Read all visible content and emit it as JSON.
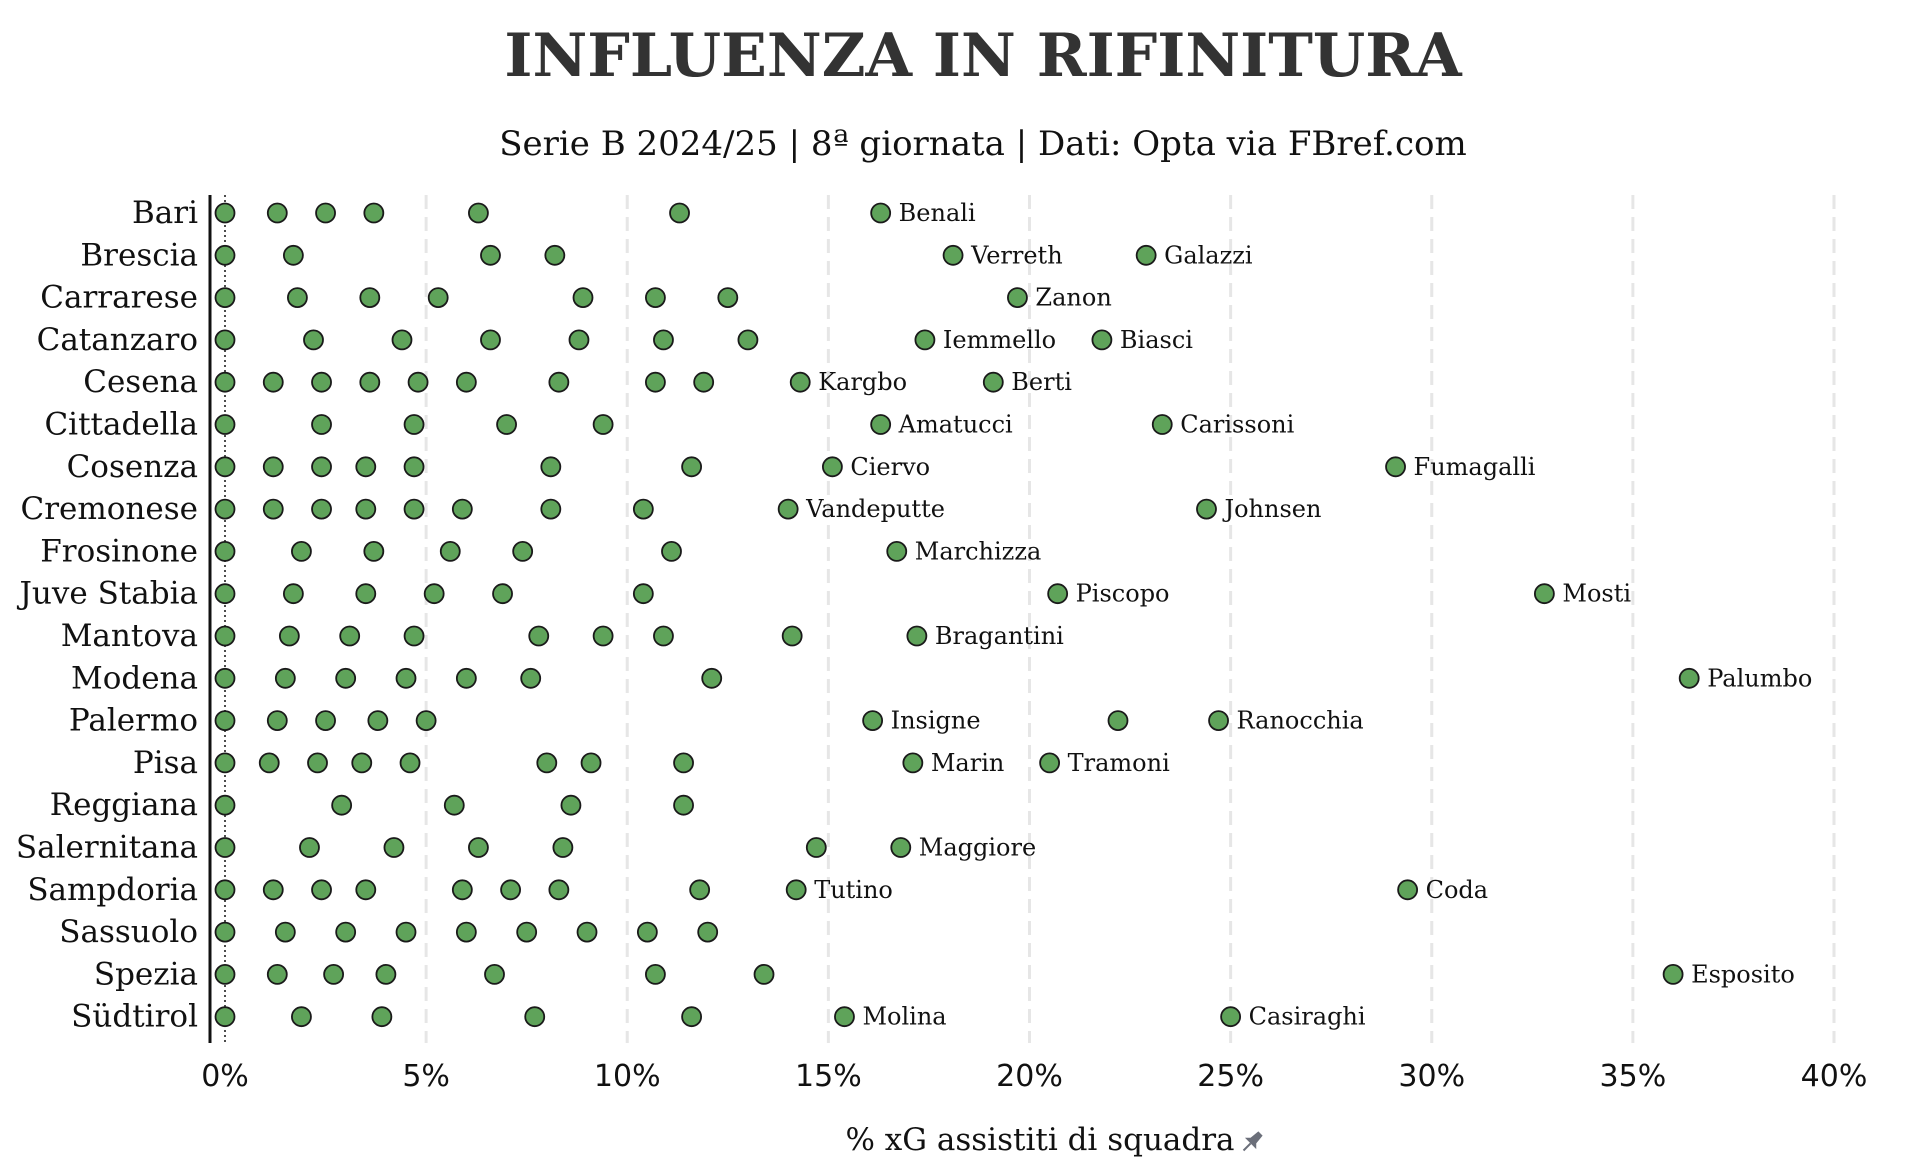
{
  "chart_data": {
    "type": "scatter",
    "title": "INFLUENZA IN RIFINITURA",
    "subtitle": "Serie B 2024/25 | 8ª giornata | Dati: Opta via FBref.com",
    "xlabel": "% xG assistiti di squadra",
    "xlim": [
      0,
      40
    ],
    "x_ticks": [
      0,
      5,
      10,
      15,
      20,
      25,
      30,
      35,
      40
    ],
    "x_tick_labels": [
      "0%",
      "5%",
      "10%",
      "15%",
      "20%",
      "25%",
      "30%",
      "35%",
      "40%"
    ],
    "grid": "vertical dashed",
    "marker_color": "#5fa35a",
    "marker_edge": "#1a1a1a",
    "categories": [
      "Bari",
      "Brescia",
      "Carrarese",
      "Catanzaro",
      "Cesena",
      "Cittadella",
      "Cosenza",
      "Cremonese",
      "Frosinone",
      "Juve Stabia",
      "Mantova",
      "Modena",
      "Palermo",
      "Pisa",
      "Reggiana",
      "Salernitana",
      "Sampdoria",
      "Sassuolo",
      "Spezia",
      "Südtirol"
    ],
    "teams": [
      {
        "team": "Bari",
        "values": [
          0,
          1.3,
          2.5,
          3.7,
          6.3,
          11.3,
          16.3
        ],
        "labels": [
          {
            "x": 16.3,
            "name": "Benali"
          }
        ]
      },
      {
        "team": "Brescia",
        "values": [
          0,
          1.7,
          6.6,
          8.2,
          18.1,
          22.9
        ],
        "labels": [
          {
            "x": 18.1,
            "name": "Verreth"
          },
          {
            "x": 22.9,
            "name": "Galazzi"
          }
        ]
      },
      {
        "team": "Carrarese",
        "values": [
          0,
          1.8,
          3.6,
          5.3,
          8.9,
          10.7,
          12.5,
          19.7
        ],
        "labels": [
          {
            "x": 19.7,
            "name": "Zanon"
          }
        ]
      },
      {
        "team": "Catanzaro",
        "values": [
          0,
          2.2,
          4.4,
          6.6,
          8.8,
          10.9,
          13.0,
          17.4,
          21.8
        ],
        "labels": [
          {
            "x": 17.4,
            "name": "Iemmello"
          },
          {
            "x": 21.8,
            "name": "Biasci"
          }
        ]
      },
      {
        "team": "Cesena",
        "values": [
          0,
          1.2,
          2.4,
          3.6,
          4.8,
          6.0,
          8.3,
          10.7,
          11.9,
          14.3,
          19.1
        ],
        "labels": [
          {
            "x": 14.3,
            "name": "Kargbo"
          },
          {
            "x": 19.1,
            "name": "Berti"
          }
        ]
      },
      {
        "team": "Cittadella",
        "values": [
          0,
          2.4,
          4.7,
          7.0,
          9.4,
          16.3,
          23.3
        ],
        "labels": [
          {
            "x": 16.3,
            "name": "Amatucci"
          },
          {
            "x": 23.3,
            "name": "Carissoni"
          }
        ]
      },
      {
        "team": "Cosenza",
        "values": [
          0,
          1.2,
          2.4,
          3.5,
          4.7,
          8.1,
          11.6,
          15.1,
          29.1
        ],
        "labels": [
          {
            "x": 15.1,
            "name": "Ciervo"
          },
          {
            "x": 29.1,
            "name": "Fumagalli"
          }
        ]
      },
      {
        "team": "Cremonese",
        "values": [
          0,
          1.2,
          2.4,
          3.5,
          4.7,
          5.9,
          8.1,
          10.4,
          14.0,
          24.4
        ],
        "labels": [
          {
            "x": 14.0,
            "name": "Vandeputte"
          },
          {
            "x": 24.4,
            "name": "Johnsen"
          }
        ]
      },
      {
        "team": "Frosinone",
        "values": [
          0,
          1.9,
          3.7,
          5.6,
          7.4,
          11.1,
          16.7
        ],
        "labels": [
          {
            "x": 16.7,
            "name": "Marchizza"
          }
        ]
      },
      {
        "team": "Juve Stabia",
        "values": [
          0,
          1.7,
          3.5,
          5.2,
          6.9,
          10.4,
          20.7,
          32.8
        ],
        "labels": [
          {
            "x": 20.7,
            "name": "Piscopo"
          },
          {
            "x": 32.8,
            "name": "Mosti"
          }
        ]
      },
      {
        "team": "Mantova",
        "values": [
          0,
          1.6,
          3.1,
          4.7,
          7.8,
          9.4,
          10.9,
          14.1,
          17.2
        ],
        "labels": [
          {
            "x": 17.2,
            "name": "Bragantini"
          }
        ]
      },
      {
        "team": "Modena",
        "values": [
          0,
          1.5,
          3.0,
          4.5,
          6.0,
          7.6,
          12.1,
          36.4
        ],
        "labels": [
          {
            "x": 36.4,
            "name": "Palumbo"
          }
        ]
      },
      {
        "team": "Palermo",
        "values": [
          0,
          1.3,
          2.5,
          3.8,
          5.0,
          16.1,
          22.2,
          24.7
        ],
        "labels": [
          {
            "x": 16.1,
            "name": "Insigne"
          },
          {
            "x": 24.7,
            "name": "Ranocchia"
          }
        ]
      },
      {
        "team": "Pisa",
        "values": [
          0,
          1.1,
          2.3,
          3.4,
          4.6,
          8.0,
          9.1,
          11.4,
          17.1,
          20.5
        ],
        "labels": [
          {
            "x": 17.1,
            "name": "Marin"
          },
          {
            "x": 20.5,
            "name": "Tramoni"
          }
        ]
      },
      {
        "team": "Reggiana",
        "values": [
          0,
          2.9,
          5.7,
          8.6,
          11.4
        ],
        "labels": []
      },
      {
        "team": "Salernitana",
        "values": [
          0,
          2.1,
          4.2,
          6.3,
          8.4,
          14.7,
          16.8
        ],
        "labels": [
          {
            "x": 16.8,
            "name": "Maggiore"
          }
        ]
      },
      {
        "team": "Sampdoria",
        "values": [
          0,
          1.2,
          2.4,
          3.5,
          5.9,
          7.1,
          8.3,
          11.8,
          14.2,
          29.4
        ],
        "labels": [
          {
            "x": 14.2,
            "name": "Tutino"
          },
          {
            "x": 29.4,
            "name": "Coda"
          }
        ]
      },
      {
        "team": "Sassuolo",
        "values": [
          0,
          1.5,
          3.0,
          4.5,
          6.0,
          7.5,
          9.0,
          10.5,
          12.0
        ],
        "labels": []
      },
      {
        "team": "Spezia",
        "values": [
          0,
          1.3,
          2.7,
          4.0,
          6.7,
          10.7,
          13.4,
          36.0
        ],
        "labels": [
          {
            "x": 36.0,
            "name": "Esposito"
          }
        ]
      },
      {
        "team": "Südtirol",
        "values": [
          0,
          1.9,
          3.9,
          7.7,
          11.6,
          15.4,
          25.0
        ],
        "labels": [
          {
            "x": 15.4,
            "name": "Molina"
          },
          {
            "x": 25.0,
            "name": "Casiraghi"
          }
        ]
      }
    ]
  }
}
